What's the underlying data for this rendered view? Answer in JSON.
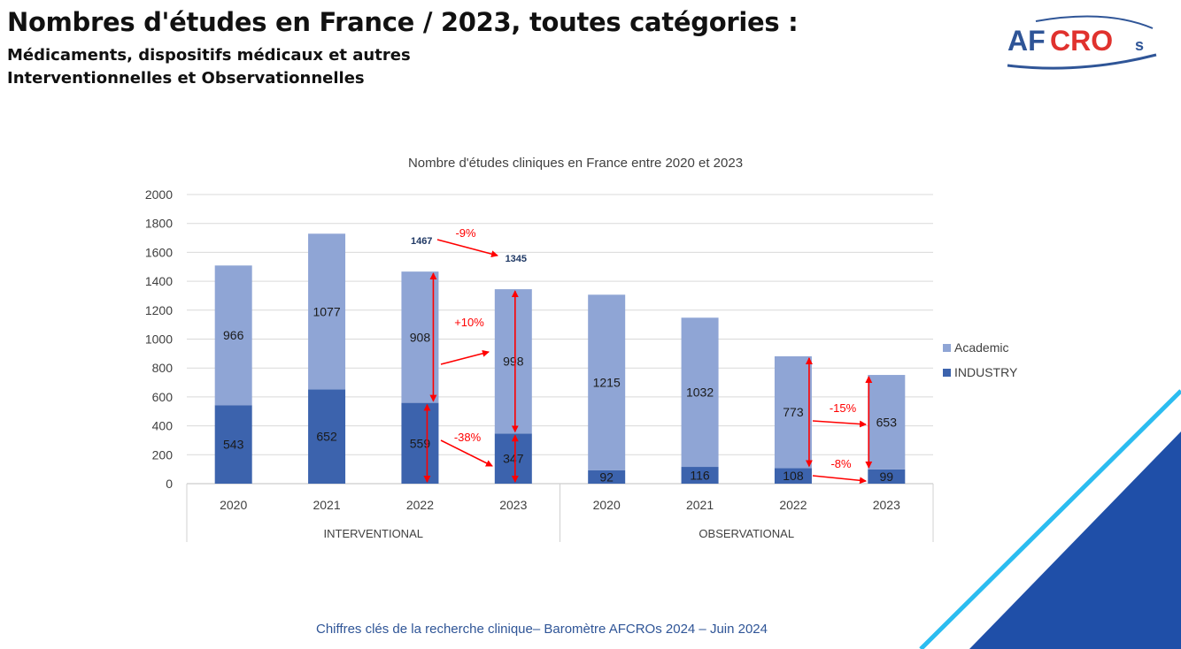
{
  "header": {
    "title": "Nombres d'études en France / 2023, toutes catégories :",
    "subtitle_1": "Médicaments, dispositifs médicaux et autres",
    "subtitle_2": "Interventionnelles et Observationnelles"
  },
  "logo": {
    "text": "AFCRO",
    "suffix": "s",
    "color_blue": "#2f5597",
    "color_red": "#e0322e"
  },
  "footer": {
    "text": "Chiffres clés de la recherche clinique– Baromètre AFCROs 2024 – Juin 2024"
  },
  "chart_data": {
    "type": "bar",
    "stacked": true,
    "title": "Nombre d'études cliniques en France entre 2020 et 2023",
    "categories": [
      "2020",
      "2021",
      "2022",
      "2023",
      "2020",
      "2021",
      "2022",
      "2023"
    ],
    "groups": [
      {
        "label": "INTERVENTIONAL",
        "categories": [
          "2020",
          "2021",
          "2022",
          "2023"
        ]
      },
      {
        "label": "OBSERVATIONAL",
        "categories": [
          "2020",
          "2021",
          "2022",
          "2023"
        ]
      }
    ],
    "series": [
      {
        "name": "INDUSTRY",
        "color": "#3c63ad",
        "values": [
          543,
          652,
          559,
          347,
          92,
          116,
          108,
          99
        ]
      },
      {
        "name": "Academic",
        "color": "#8fa5d5",
        "values": [
          966,
          1077,
          908,
          998,
          1215,
          1032,
          773,
          653
        ]
      }
    ],
    "legend_order": [
      "Academic",
      "INDUSTRY"
    ],
    "ylim": [
      0,
      2000
    ],
    "yticks": [
      0,
      200,
      400,
      600,
      800,
      1000,
      1200,
      1400,
      1600,
      1800,
      2000
    ],
    "grid": true,
    "legend_position": "right",
    "annotations": {
      "totals": [
        {
          "label": "1467",
          "category_index": 2
        },
        {
          "label": "1345",
          "category_index": 3
        }
      ],
      "changes": [
        "-9%",
        "+10%",
        "-38%",
        "-15%",
        "-8%"
      ],
      "annotation_color": "#ff0000",
      "totals_color": "#1f3864"
    }
  }
}
